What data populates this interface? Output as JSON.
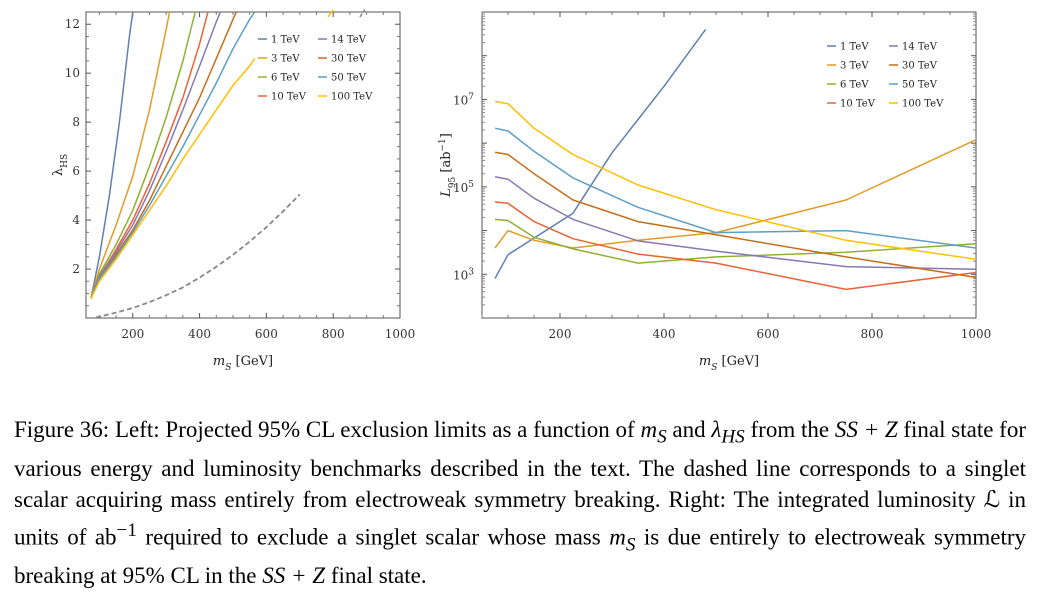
{
  "figure": {
    "colors": {
      "1 TeV": "#5d81b4",
      "3 TeV": "#e09c24",
      "6 TeV": "#8fb032",
      "10 TeV": "#eb6235",
      "14 TeV": "#8778b3",
      "30 TeV": "#c56e1a",
      "50 TeV": "#5d9ec7",
      "100 TeV": "#ffbf00",
      "ewsb": "#888888"
    },
    "left_chart": {
      "type": "line",
      "ylabel": "λ",
      "ylabel_sub": "HS",
      "xlabel": "m",
      "xlabel_sub": "S",
      "xlabel_unit": " [GeV]",
      "xlim": [
        60,
        1000
      ],
      "ylim": [
        0,
        12.5
      ],
      "xticks": [
        200,
        400,
        600,
        800,
        1000
      ],
      "yticks": [
        2,
        4,
        6,
        8,
        10,
        12
      ],
      "legend_placement": "top-right",
      "legend_columns": [
        [
          "1 TeV",
          "3 TeV",
          "6 TeV",
          "10 TeV"
        ],
        [
          "14 TeV",
          "30 TeV",
          "50 TeV",
          "100 TeV"
        ]
      ],
      "series": [
        {
          "name": "1 TeV",
          "x": [
            75,
            100,
            130,
            160,
            190,
            200
          ],
          "y": [
            0.8,
            2.5,
            5.0,
            8.0,
            11.5,
            12.5
          ]
        },
        {
          "name": "3 TeV",
          "x": [
            75,
            100,
            150,
            200,
            250,
            300,
            310
          ],
          "y": [
            0.8,
            2.0,
            3.8,
            5.8,
            8.5,
            11.8,
            12.5
          ]
        },
        {
          "name": "6 TeV",
          "x": [
            75,
            100,
            150,
            200,
            250,
            300,
            350,
            387
          ],
          "y": [
            0.8,
            1.8,
            3.0,
            4.4,
            6.2,
            8.2,
            10.5,
            12.5
          ]
        },
        {
          "name": "10 TeV",
          "x": [
            75,
            100,
            150,
            200,
            250,
            300,
            350,
            400,
            425
          ],
          "y": [
            0.8,
            1.7,
            2.8,
            4.0,
            5.5,
            7.2,
            9.0,
            11.2,
            12.5
          ]
        },
        {
          "name": "14 TeV",
          "x": [
            75,
            100,
            150,
            200,
            250,
            300,
            350,
            400,
            450,
            462
          ],
          "y": [
            0.8,
            1.7,
            2.7,
            3.8,
            5.2,
            6.8,
            8.5,
            10.3,
            12.1,
            12.5
          ]
        },
        {
          "name": "30 TeV",
          "x": [
            75,
            100,
            150,
            200,
            250,
            300,
            350,
            400,
            450,
            500,
            510
          ],
          "y": [
            0.8,
            1.6,
            2.6,
            3.6,
            4.8,
            6.2,
            7.6,
            9.0,
            10.6,
            12.2,
            12.5
          ]
        },
        {
          "name": "50 TeV",
          "x": [
            75,
            100,
            150,
            200,
            250,
            300,
            350,
            400,
            450,
            500,
            550,
            565
          ],
          "y": [
            0.8,
            1.6,
            2.5,
            3.5,
            4.6,
            5.8,
            7.0,
            8.3,
            9.6,
            11.0,
            12.2,
            12.5
          ]
        },
        {
          "name": "100 TeV",
          "x": [
            75,
            100,
            150,
            200,
            250,
            300,
            350,
            400,
            450,
            500,
            550,
            565
          ],
          "y": [
            0.8,
            1.5,
            2.4,
            3.4,
            4.4,
            5.4,
            6.5,
            7.5,
            8.5,
            9.5,
            10.3,
            10.6
          ]
        }
      ],
      "overflow_segments": [
        {
          "name": "100 TeV",
          "x": [
            785,
            800
          ],
          "y": [
            12.3,
            12.6
          ]
        },
        {
          "name": "ewsb",
          "x": [
            880,
            895
          ],
          "y": [
            12.3,
            12.6
          ]
        }
      ],
      "dashed_series": {
        "name": "ewsb",
        "x": [
          90,
          150,
          200,
          250,
          300,
          350,
          400,
          450,
          500,
          550,
          600,
          650,
          700
        ],
        "y": [
          0.02,
          0.22,
          0.41,
          0.65,
          0.93,
          1.25,
          1.65,
          2.09,
          2.58,
          3.12,
          3.71,
          4.36,
          5.05
        ]
      }
    },
    "right_chart": {
      "type": "line",
      "ylabel": "L",
      "ylabel_sub": "95",
      "ylabel_unit": " [ab",
      "ylabel_exp": "−1",
      "ylabel_close": "]",
      "xlabel": "m",
      "xlabel_sub": "S",
      "xlabel_unit": " [GeV]",
      "yscale": "log",
      "xlim": [
        50,
        1000
      ],
      "ylim": [
        100.0,
        1000000000.0
      ],
      "xticks": [
        200,
        400,
        600,
        800,
        1000
      ],
      "yticks": [
        {
          "value": 1000,
          "base": "10",
          "exp": "3"
        },
        {
          "value": 100000,
          "base": "10",
          "exp": "5"
        },
        {
          "value": 10000000,
          "base": "10",
          "exp": "7"
        }
      ],
      "legend_placement": "top-right",
      "legend_columns": [
        [
          "1 TeV",
          "3 TeV",
          "6 TeV",
          "10 TeV"
        ],
        [
          "14 TeV",
          "30 TeV",
          "50 TeV",
          "100 TeV"
        ]
      ],
      "series": [
        {
          "name": "1 TeV",
          "x": [
            75,
            100,
            225,
            300,
            400,
            480
          ],
          "y": [
            800,
            2800,
            25000,
            600000,
            20000000,
            400000000
          ]
        },
        {
          "name": "3 TeV",
          "x": [
            75,
            100,
            150,
            225,
            350,
            500,
            750,
            1000
          ],
          "y": [
            4000,
            10000,
            6000,
            4000,
            6000,
            9000,
            50000,
            1200000
          ]
        },
        {
          "name": "6 TeV",
          "x": [
            75,
            100,
            150,
            225,
            350,
            500,
            750,
            1000
          ],
          "y": [
            18000,
            17000,
            7000,
            3800,
            1800,
            2500,
            3200,
            5000
          ]
        },
        {
          "name": "10 TeV",
          "x": [
            75,
            100,
            150,
            225,
            350,
            500,
            750,
            1000
          ],
          "y": [
            45000,
            42000,
            16000,
            6500,
            2900,
            1800,
            450,
            1100
          ]
        },
        {
          "name": "14 TeV",
          "x": [
            75,
            100,
            150,
            225,
            350,
            500,
            750,
            1000
          ],
          "y": [
            170000,
            150000,
            55000,
            18000,
            5800,
            3400,
            1500,
            1300
          ]
        },
        {
          "name": "30 TeV",
          "x": [
            75,
            100,
            150,
            225,
            350,
            500,
            750,
            1000
          ],
          "y": [
            620000,
            550000,
            200000,
            50000,
            16000,
            8000,
            2500,
            850
          ]
        },
        {
          "name": "50 TeV",
          "x": [
            75,
            100,
            150,
            225,
            350,
            500,
            750,
            1000
          ],
          "y": [
            2200000,
            1900000,
            650000,
            160000,
            34000,
            9000,
            10000,
            4000
          ]
        },
        {
          "name": "100 TeV",
          "x": [
            75,
            100,
            150,
            225,
            350,
            500,
            750,
            1000
          ],
          "y": [
            9000000,
            8000000,
            2200000,
            550000,
            110000,
            30000,
            6000,
            2200
          ]
        }
      ]
    }
  },
  "caption": {
    "label": "Figure 36:",
    "t1": "Left: Projected 95% CL exclusion limits as a function of",
    "m": "m",
    "s": "S",
    "and": "and",
    "lambda": "λ",
    "hs": "HS",
    "from": "from the",
    "ssz": "SS + Z",
    "t2": "final state for various energy and luminosity benchmarks described in the text. The dashed line corresponds to a singlet scalar acquiring mass entirely from electroweak symmetry breaking. Right: The integrated luminosity",
    "lum": "ℒ",
    "units": "in units of ab",
    "exp": "−1",
    "t3": "required to exclude a singlet scalar whose mass",
    "t4": "is due entirely to electroweak symmetry breaking at 95% CL in the",
    "end": "final state."
  }
}
